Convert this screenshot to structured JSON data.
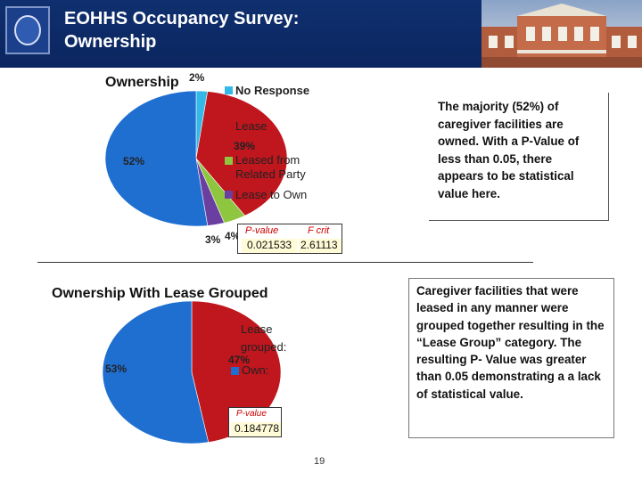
{
  "header": {
    "title_line1": "EOHHS Occupancy Survey:",
    "title_line2": "Ownership"
  },
  "colors": {
    "header_bg": "#0b2660",
    "blue": "#1f6fd1",
    "red": "#c0161e",
    "green": "#8ec63f",
    "purple": "#6a3fa0",
    "cyan": "#33b8e8"
  },
  "chart_data": [
    {
      "type": "pie",
      "title": "Ownership",
      "slices": [
        {
          "name": "No Response",
          "value": 2,
          "label": "2%"
        },
        {
          "name": "Lease",
          "value": 39,
          "label": "39%"
        },
        {
          "name": "Leased from Related Party",
          "value": 4,
          "label": "4%"
        },
        {
          "name": "Lease to Own",
          "value": 3,
          "label": "3%"
        },
        {
          "name": "Own",
          "value": 52,
          "label": "52%"
        }
      ],
      "legend_entries": [
        "No Response",
        "Lease",
        "Leased from Related Party",
        "Lease to Own"
      ],
      "legend_position": "right",
      "stats": {
        "p_value_label": "P-value",
        "p_value": "0.021533",
        "f_crit_label": "F crit",
        "f_crit": "2.61113"
      }
    },
    {
      "type": "pie",
      "title": "Ownership With Lease Grouped",
      "slices": [
        {
          "name": "Lease grouped",
          "value": 47,
          "label": "47%"
        },
        {
          "name": "Own",
          "value": 53,
          "label": "53%"
        }
      ],
      "legend_entries": [
        "Lease grouped:",
        "Own:"
      ],
      "legend_position": "right",
      "stats": {
        "p_value_label": "P-value",
        "p_value": "0.184778"
      }
    }
  ],
  "notes": {
    "top": "The majority (52%) of caregiver facilities are owned. With a P-Value of less than 0.05, there appears to be statistical value here.",
    "bottom": "Caregiver facilities that were leased in any manner were grouped together resulting in the “Lease Group” category. The resulting P- Value was greater than 0.05 demonstrating a a lack of statistical value."
  },
  "page_number": "19"
}
